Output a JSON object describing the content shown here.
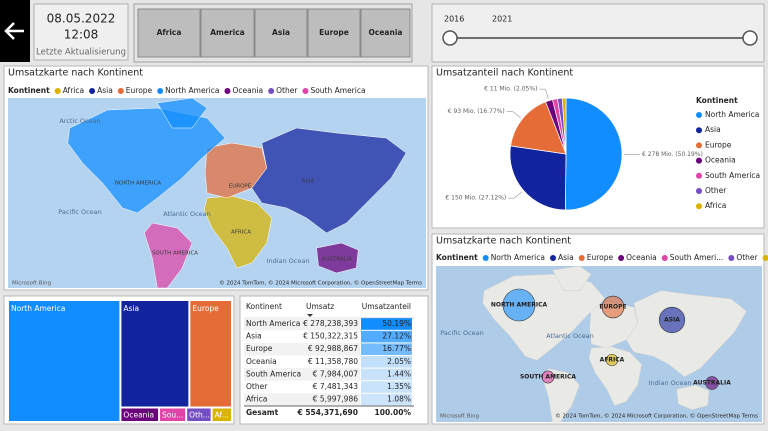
{
  "header": {
    "date": "08.05.2022",
    "time": "12:08",
    "caption": "Letzte Aktualisierung"
  },
  "slicer": {
    "buttons": [
      "Africa",
      "America",
      "Asia",
      "Europe",
      "Oceania"
    ]
  },
  "year_slider": {
    "labels": [
      "2016",
      "2021"
    ]
  },
  "chart_data": [
    {
      "type": "map",
      "title": "Umsatzkarte nach Kontinent",
      "legend_title": "Kontinent",
      "series": [
        {
          "name": "Africa",
          "color": "#D9B300"
        },
        {
          "name": "Asia",
          "color": "#12239E"
        },
        {
          "name": "Europe",
          "color": "#E66C37"
        },
        {
          "name": "North America",
          "color": "#118DFF"
        },
        {
          "name": "Oceania",
          "color": "#6B007B"
        },
        {
          "name": "Other",
          "color": "#744EC2"
        },
        {
          "name": "South America",
          "color": "#E044A7"
        }
      ],
      "region_labels": [
        "AFRICA",
        "ASIA",
        "EUROPE",
        "NORTH AMERICA",
        "AUSTRALIA",
        null,
        "SOUTH AMERICA"
      ],
      "ocean_labels": [
        "Arctic Ocean",
        "Pacific Ocean",
        "Atlantic Ocean",
        "Indian Ocean"
      ],
      "attribution": "© 2024 TomTom, © 2024 Microsoft Corporation, © OpenStreetMap  Terms",
      "provider": "Microsoft Bing"
    },
    {
      "type": "pie",
      "title": "Umsatzanteil nach Kontinent",
      "legend_title": "Kontinent",
      "categories": [
        "North America",
        "Asia",
        "Europe",
        "Oceania",
        "South America",
        "Other",
        "Africa"
      ],
      "values": [
        50.19,
        27.12,
        16.77,
        2.05,
        1.44,
        1.35,
        1.08
      ],
      "value_labels": [
        "€ 278 Mio. (50.19%)",
        "€ 150 Mio. (27.12%)",
        "€ 93 Mio. (16.77%)",
        "€ 11 Mio. (2.05%)",
        null,
        null,
        null
      ],
      "colors": [
        "#118DFF",
        "#12239E",
        "#E66C37",
        "#6B007B",
        "#E044A7",
        "#744EC2",
        "#D9B300"
      ]
    },
    {
      "type": "bubble_map",
      "title": "Umsatzkarte nach Kontinent",
      "legend_title": "Kontinent",
      "series": [
        {
          "name": "North America",
          "color": "#118DFF"
        },
        {
          "name": "Asia",
          "color": "#12239E"
        },
        {
          "name": "Europe",
          "color": "#E66C37"
        },
        {
          "name": "Oceania",
          "color": "#6B007B"
        },
        {
          "name": "South Ameri...",
          "color": "#E044A7"
        },
        {
          "name": "Other",
          "color": "#744EC2"
        },
        {
          "name": "Africa",
          "color": "#D9B300"
        }
      ],
      "values": [
        278238393,
        150322315,
        92988867,
        11358780,
        7984007,
        null,
        5997986
      ],
      "labels": [
        "NORTH AMERICA",
        "ASIA",
        "EUROPE",
        "AUSTRALIA",
        "SOUTH AMERICA",
        null,
        "AFRICA"
      ],
      "ocean_labels": [
        "Pacific Ocean",
        "Atlantic Ocean",
        "Indian Ocean"
      ],
      "attribution": "© 2024 TomTom, © 2024 Microsoft Corporation, © OpenStreetMap  Terms",
      "provider": "Microsoft Bing"
    },
    {
      "type": "treemap",
      "categories": [
        "North America",
        "Asia",
        "Europe",
        "Oceania",
        "Sou...",
        "Oth...",
        "Af..."
      ],
      "values": [
        278238393,
        150322315,
        92988867,
        11358780,
        7984007,
        7481343,
        5997986
      ],
      "colors": [
        "#118DFF",
        "#12239E",
        "#E66C37",
        "#6B007B",
        "#E044A7",
        "#744EC2",
        "#D9B300"
      ]
    }
  ],
  "table": {
    "columns": [
      "Kontinent",
      "Umsatz",
      "Umsatzanteil"
    ],
    "rows": [
      [
        "North America",
        "€ 278,238,393",
        "50.19%"
      ],
      [
        "Asia",
        "€ 150,322,315",
        "27.12%"
      ],
      [
        "Europe",
        "€ 92,988,867",
        "16.77%"
      ],
      [
        "Oceania",
        "€ 11,358,780",
        "2.05%"
      ],
      [
        "South America",
        "€ 7,984,007",
        "1.44%"
      ],
      [
        "Other",
        "€ 7,481,343",
        "1.35%"
      ],
      [
        "Africa",
        "€ 5,997,986",
        "1.08%"
      ]
    ],
    "total": [
      "Gesamt",
      "€ 554,371,690",
      "100.00%"
    ]
  }
}
